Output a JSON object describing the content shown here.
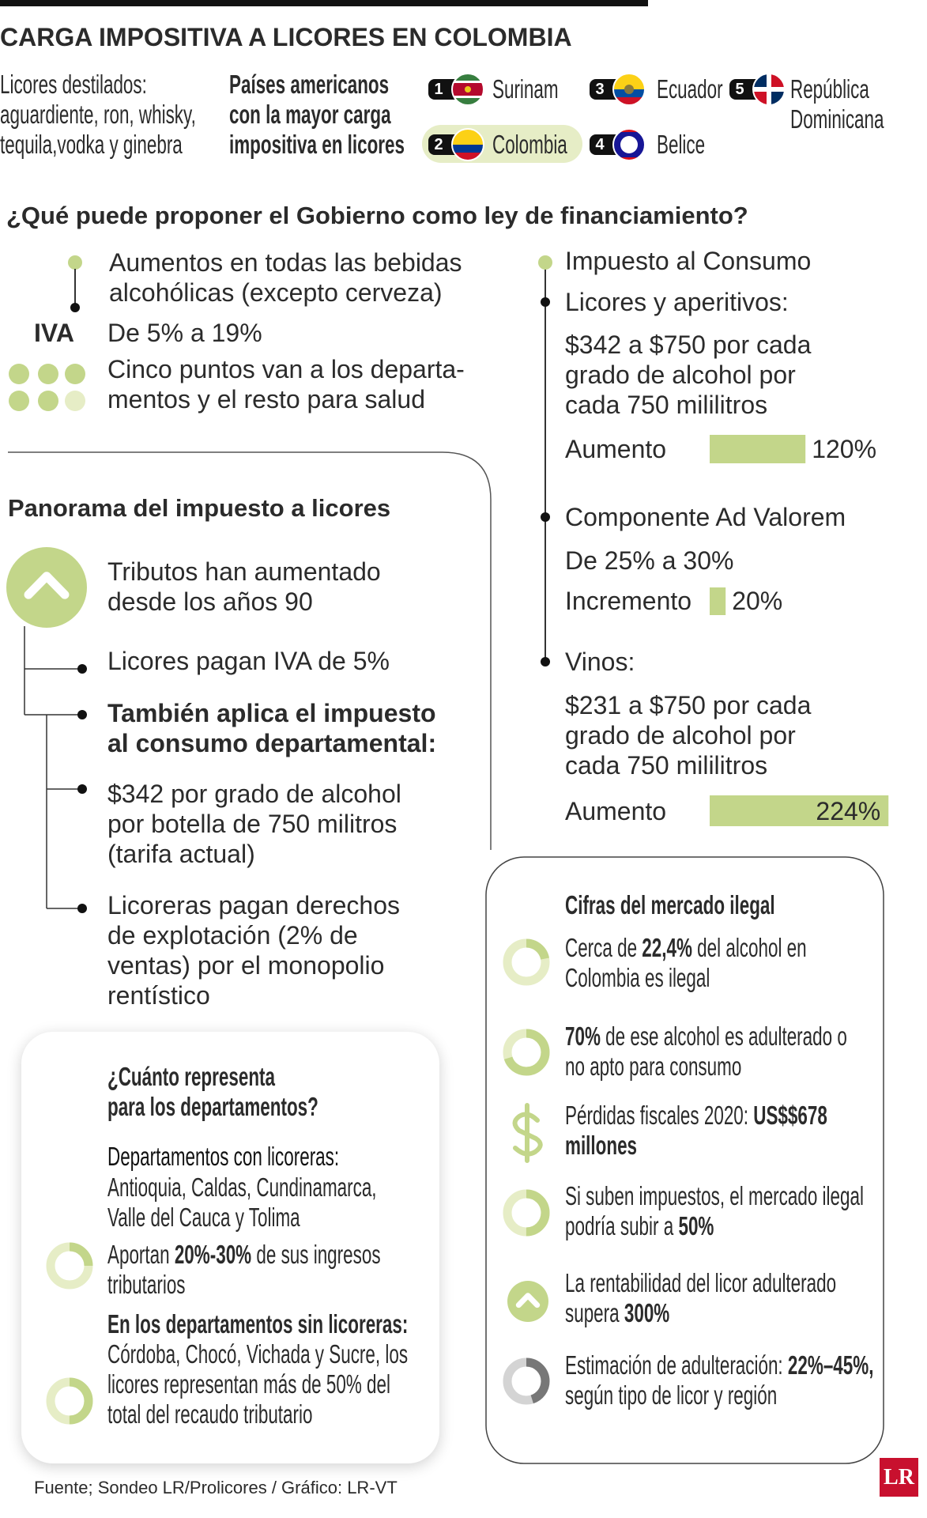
{
  "header": {
    "title": "CARGA IMPOSITIVA A LICORES EN COLOMBIA",
    "subtitle": [
      "Licores destilados:",
      "aguardiente, ron, whisky,",
      "tequila,vodka y ginebra"
    ],
    "ranking_title": [
      "Países americanos",
      "con la mayor carga",
      "impositiva en licores"
    ]
  },
  "ranking": [
    {
      "rank": "1",
      "country": "Surinam"
    },
    {
      "rank": "2",
      "country": "Colombia"
    },
    {
      "rank": "3",
      "country": "Ecuador"
    },
    {
      "rank": "4",
      "country": "Belice"
    },
    {
      "rank": "5",
      "country": "República Dominicana"
    }
  ],
  "proposal": {
    "question": "¿Qué puede proponer el Gobierno como ley de financiamiento?",
    "iva": {
      "scope": [
        "Aumentos en todas las bebidas",
        "alcohólicas (excepto cerveza)"
      ],
      "label": "IVA",
      "change": "De 5% a 19%",
      "note": [
        "Cinco puntos van a los departa-",
        "mentos y el resto para salud"
      ]
    },
    "consumption": {
      "title": "Impuesto al Consumo",
      "spirits": {
        "heading": "Licores y aperitivos:",
        "lines": [
          "$342 a $750 por cada",
          "grado de alcohol por",
          "cada 750 mililitros"
        ],
        "increase_label": "Aumento",
        "value": 120,
        "value_label": "120%"
      },
      "ad_valorem": {
        "heading": "Componente Ad Valorem",
        "change": "De 25% a 30%",
        "increase_label": "Incremento",
        "value": 20,
        "value_label": "20%"
      },
      "wines": {
        "heading": "Vinos:",
        "lines": [
          "$231 a $750 por cada",
          "grado de alcohol por",
          "cada 750 mililitros"
        ],
        "increase_label": "Aumento",
        "value": 224,
        "value_label": "224%"
      }
    }
  },
  "panorama": {
    "title": "Panorama del impuesto a licores",
    "items": [
      {
        "lines": [
          "Tributos han aumentado",
          "desde los años 90"
        ]
      },
      {
        "lines": [
          "Licores pagan IVA de 5%"
        ]
      },
      {
        "lines": [
          "También aplica el impuesto",
          "al consumo departamental:"
        ],
        "bold": true
      },
      {
        "lines": [
          "$342 por grado de alcohol",
          "por botella de 750 militros",
          "(tarifa actual)"
        ]
      },
      {
        "lines": [
          "Licoreras pagan derechos",
          "de explotación (2% de",
          "ventas) por el monopolio",
          "rentístico"
        ]
      }
    ]
  },
  "departments": {
    "title": [
      "¿Cuánto representa",
      "para los departamentos?"
    ],
    "with_heading": "Departamentos con licoreras:",
    "with_list": [
      "Antioquia, Caldas, Cundinamarca,",
      "Valle del Cauca y Tolima"
    ],
    "with_share": [
      {
        "t": "Aportan "
      },
      {
        "t": "20%-30%",
        "b": true
      },
      {
        "t": " de sus ingresos tributarios"
      }
    ],
    "without": [
      {
        "t": "En los departamentos sin licoreras:",
        "b": true
      },
      {
        "t": " Córdoba, Chocó, Vichada y Sucre, los licores representan más de 50% del total del recaudo tributario"
      }
    ]
  },
  "illegal": {
    "title": "Cifras del mercado ilegal",
    "items": [
      [
        {
          "t": "Cerca de "
        },
        {
          "t": "22,4%",
          "b": true
        },
        {
          "t": " del alcohol en Colombia es ilegal"
        }
      ],
      [
        {
          "t": "70%",
          "b": true
        },
        {
          "t": " de ese alcohol es adulterado o no apto para consumo"
        }
      ],
      [
        {
          "t": "Pérdidas fiscales 2020: "
        },
        {
          "t": "US$$678 millones",
          "b": true
        }
      ],
      [
        {
          "t": "Si suben impuestos, el mercado ilegal podría subir a "
        },
        {
          "t": "50%",
          "b": true
        }
      ],
      [
        {
          "t": "La rentabilidad del licor adulterado supera "
        },
        {
          "t": "300%",
          "b": true
        }
      ],
      [
        {
          "t": "Estimación de adulteración: "
        },
        {
          "t": "22%–45%,",
          "b": true
        },
        {
          "t": " según tipo de licor y región"
        }
      ]
    ]
  },
  "footer": {
    "source": "Fuente; Sondeo LR/Prolicores / Gráfico: LR-VT",
    "logo": "LR"
  }
}
